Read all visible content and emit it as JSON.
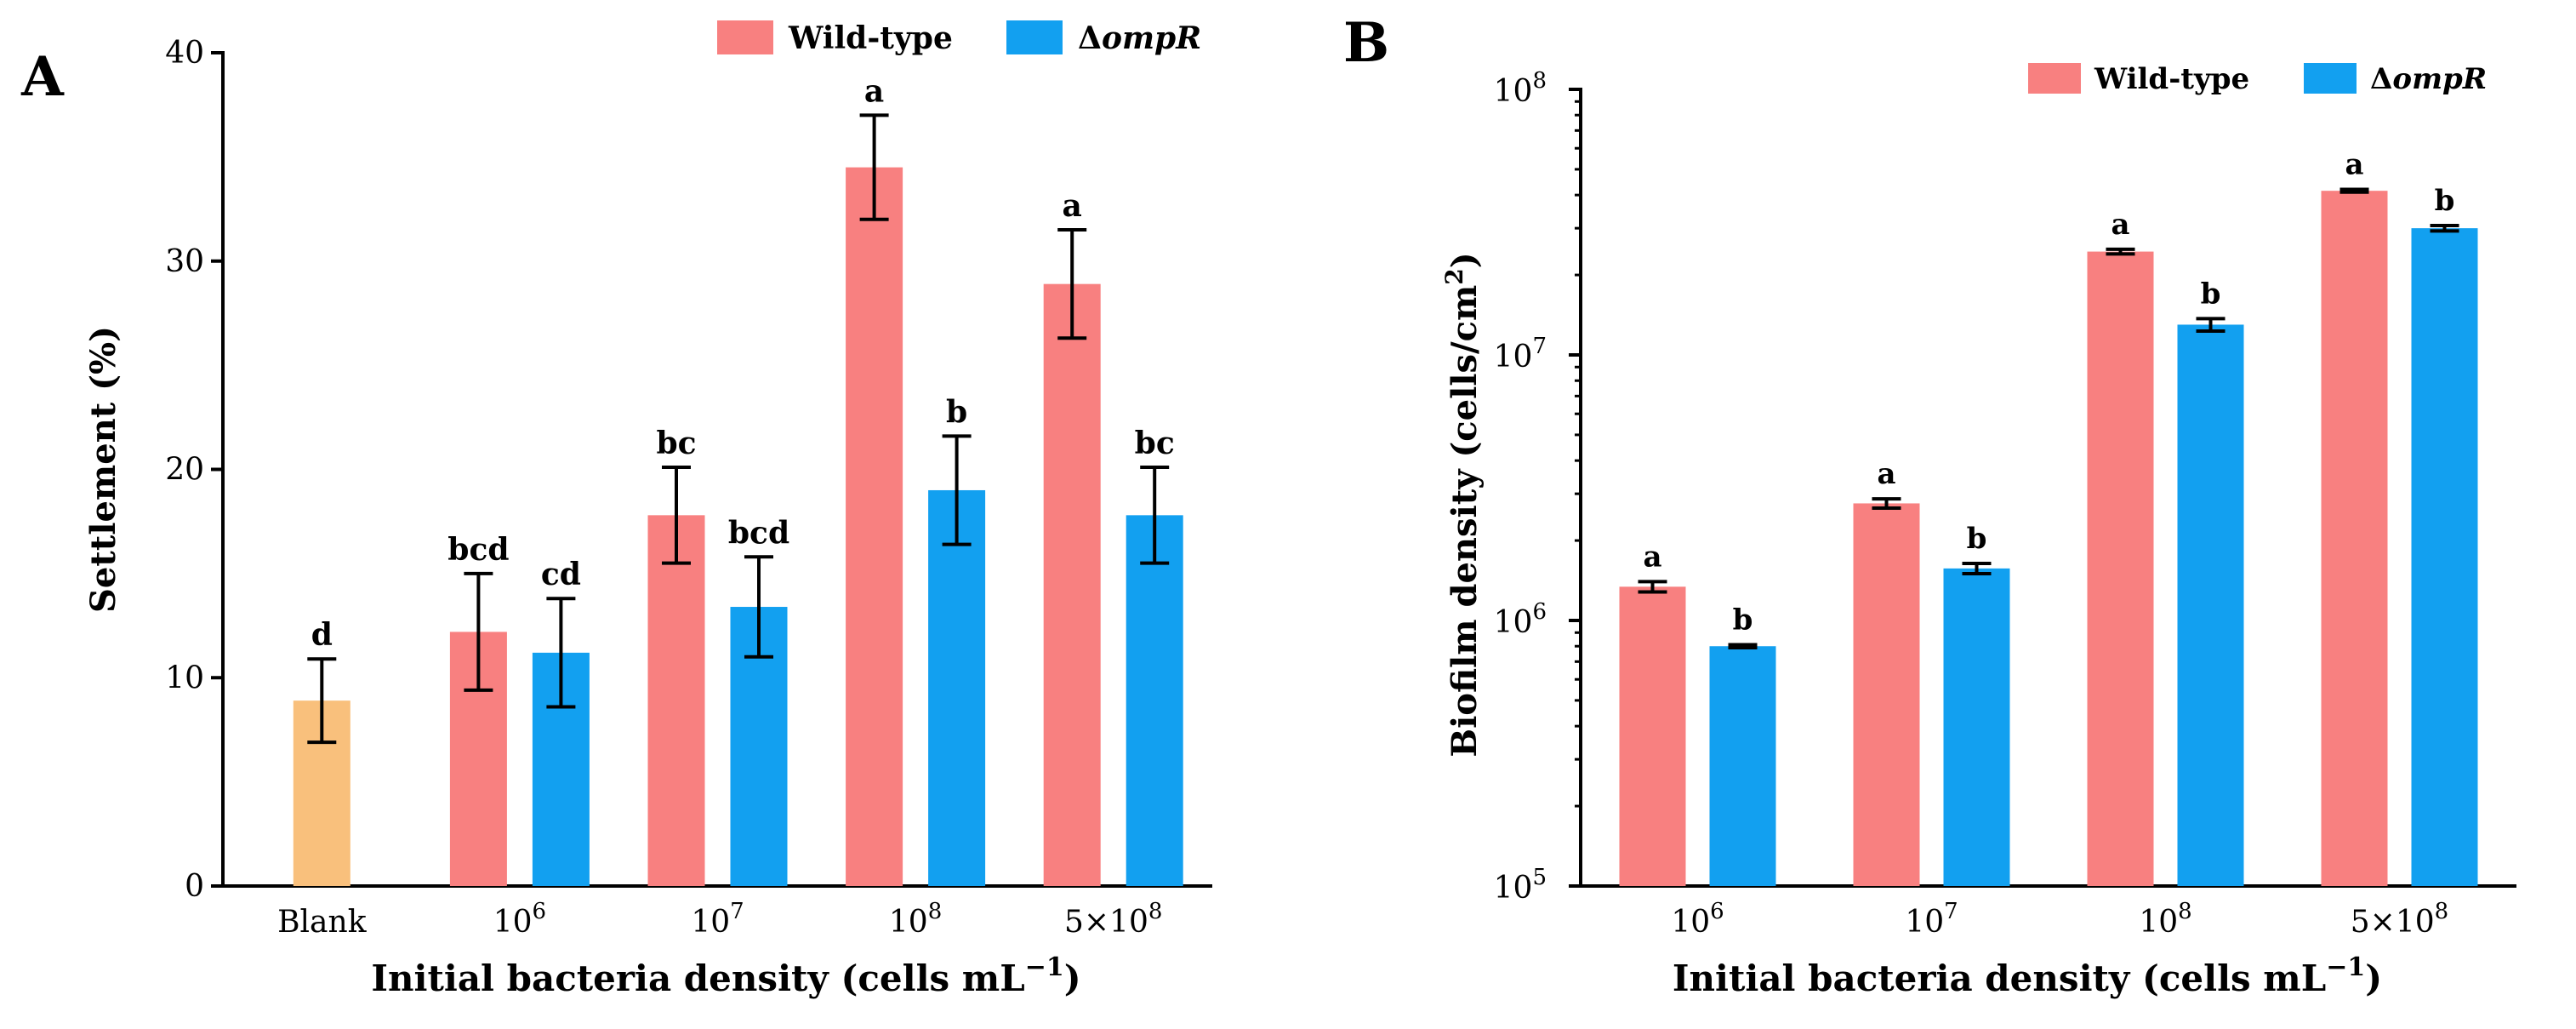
{
  "colors": {
    "wildtype": "#F88080",
    "mutant": "#12A0F0",
    "blank": "#F9C07C",
    "axis": "#000000"
  },
  "chart_data": [
    {
      "panel_label": "A",
      "type": "bar",
      "ylabel": "Settlement (%)",
      "xlabel_main": "Initial bacteria density (cells mL",
      "xlabel_sup": "−1",
      "xlabel_close": ")",
      "yscale": "linear",
      "ylim": [
        0,
        40
      ],
      "yticks": [
        {
          "value": 0,
          "label": "0"
        },
        {
          "value": 10,
          "label": "10"
        },
        {
          "value": 20,
          "label": "20"
        },
        {
          "value": 30,
          "label": "30"
        },
        {
          "value": 40,
          "label": "40"
        }
      ],
      "legend": {
        "position": "top",
        "items": [
          {
            "key": "wildtype",
            "label": "Wild-type",
            "prefix": "",
            "italic": false
          },
          {
            "key": "mutant",
            "label": "ompR",
            "prefix": "Δ",
            "italic": true
          }
        ]
      },
      "groups": [
        {
          "base": "Blank",
          "sup": "",
          "bars": [
            {
              "series": "blank",
              "value": 8.9,
              "err": 2.0,
              "letter": "d"
            }
          ]
        },
        {
          "base": "10",
          "sup": "6",
          "bars": [
            {
              "series": "wildtype",
              "value": 12.2,
              "err": 2.8,
              "letter": "bcd"
            },
            {
              "series": "mutant",
              "value": 11.2,
              "err": 2.6,
              "letter": "cd"
            }
          ]
        },
        {
          "base": "10",
          "sup": "7",
          "bars": [
            {
              "series": "wildtype",
              "value": 17.8,
              "err": 2.3,
              "letter": "bc"
            },
            {
              "series": "mutant",
              "value": 13.4,
              "err": 2.4,
              "letter": "bcd"
            }
          ]
        },
        {
          "base": "10",
          "sup": "8",
          "bars": [
            {
              "series": "wildtype",
              "value": 34.5,
              "err": 2.5,
              "letter": "a"
            },
            {
              "series": "mutant",
              "value": 19.0,
              "err": 2.6,
              "letter": "b"
            }
          ]
        },
        {
          "base": "5×10",
          "sup": "8",
          "bars": [
            {
              "series": "wildtype",
              "value": 28.9,
              "err": 2.6,
              "letter": "a"
            },
            {
              "series": "mutant",
              "value": 17.8,
              "err": 2.3,
              "letter": "bc"
            }
          ]
        }
      ]
    },
    {
      "panel_label": "B",
      "type": "bar",
      "ylabel_main": "Biofilm density (cells/cm",
      "ylabel_sup": "2",
      "ylabel_close": ")",
      "xlabel_main": "Initial bacteria density (cells mL",
      "xlabel_sup": "−1",
      "xlabel_close": ")",
      "yscale": "log",
      "ylim": [
        100000,
        100000000
      ],
      "yticks": [
        {
          "value": 100000,
          "base": "10",
          "sup": "5"
        },
        {
          "value": 1000000,
          "base": "10",
          "sup": "6"
        },
        {
          "value": 10000000,
          "base": "10",
          "sup": "7"
        },
        {
          "value": 100000000,
          "base": "10",
          "sup": "8"
        }
      ],
      "legend": {
        "position": "top-right",
        "items": [
          {
            "key": "wildtype",
            "label": "Wild-type",
            "prefix": "",
            "italic": false
          },
          {
            "key": "mutant",
            "label": "ompR",
            "prefix": "Δ",
            "italic": true
          }
        ]
      },
      "groups": [
        {
          "base": "10",
          "sup": "6",
          "bars": [
            {
              "series": "wildtype",
              "value": 1340000,
              "lo": 1280000,
              "hi": 1400000,
              "letter": "a"
            },
            {
              "series": "mutant",
              "value": 800000,
              "lo": 790000,
              "hi": 810000,
              "letter": "b"
            }
          ]
        },
        {
          "base": "10",
          "sup": "7",
          "bars": [
            {
              "series": "wildtype",
              "value": 2760000,
              "lo": 2650000,
              "hi": 2870000,
              "letter": "a"
            },
            {
              "series": "mutant",
              "value": 1570000,
              "lo": 1500000,
              "hi": 1640000,
              "letter": "b"
            }
          ]
        },
        {
          "base": "10",
          "sup": "8",
          "bars": [
            {
              "series": "wildtype",
              "value": 24500000,
              "lo": 24000000,
              "hi": 25000000,
              "letter": "a"
            },
            {
              "series": "mutant",
              "value": 13000000,
              "lo": 12300000,
              "hi": 13700000,
              "letter": "b"
            }
          ]
        },
        {
          "base": "5×10",
          "sup": "8",
          "bars": [
            {
              "series": "wildtype",
              "value": 41500000,
              "lo": 41000000,
              "hi": 42000000,
              "letter": "a"
            },
            {
              "series": "mutant",
              "value": 30000000,
              "lo": 29300000,
              "hi": 30700000,
              "letter": "b"
            }
          ]
        }
      ]
    }
  ]
}
